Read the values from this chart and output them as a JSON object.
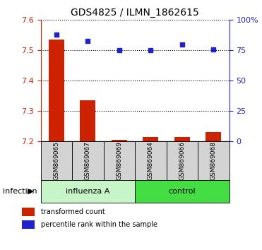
{
  "title": "GDS4825 / ILMN_1862615",
  "samples": [
    "GSM869065",
    "GSM869067",
    "GSM869069",
    "GSM869064",
    "GSM869066",
    "GSM869068"
  ],
  "group_labels": [
    "influenza A",
    "control"
  ],
  "group_split": 3,
  "bar_color": "#CC2200",
  "dot_color": "#2222CC",
  "bar_values": [
    7.535,
    7.335,
    7.205,
    7.215,
    7.215,
    7.23
  ],
  "dot_values": [
    88,
    83,
    75,
    75,
    80,
    76
  ],
  "ylim_left": [
    7.2,
    7.6
  ],
  "ylim_right": [
    0,
    100
  ],
  "yticks_left": [
    7.2,
    7.3,
    7.4,
    7.5,
    7.6
  ],
  "ytick_labels_left": [
    "7.2",
    "7.3",
    "7.4",
    "7.5",
    "7.6"
  ],
  "yticks_right": [
    0,
    25,
    50,
    75,
    100
  ],
  "ytick_labels_right": [
    "0",
    "25",
    "50",
    "75",
    "100%"
  ],
  "baseline": 7.2,
  "bar_width": 0.5,
  "xlabel_infection": "infection",
  "legend_bar": "transformed count",
  "legend_dot": "percentile rank within the sample",
  "background_color": "#ffffff",
  "sample_box_color": "#D3D3D3",
  "influenza_box_color": "#C8F5C8",
  "control_box_color": "#44DD44",
  "grid_color": "black",
  "grid_linestyle": ":",
  "grid_linewidth": 0.8
}
